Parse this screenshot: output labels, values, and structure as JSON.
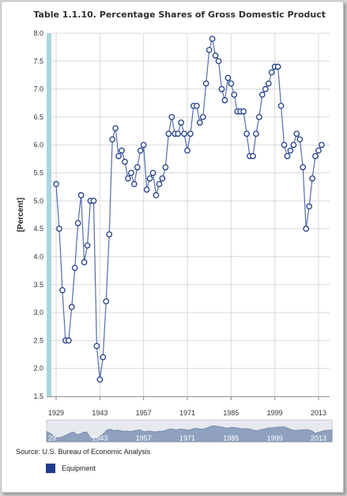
{
  "chart_data": {
    "type": "line",
    "title": "Table 1.1.10. Percentage Shares of Gross Domestic Product",
    "ylabel": "[Percent]",
    "xlabel": "",
    "ylim": [
      1.5,
      8.0
    ],
    "xlim": [
      1929,
      2015
    ],
    "yticks": [
      "8.0",
      "7.5",
      "7.0",
      "6.5",
      "6.0",
      "5.5",
      "5.0",
      "4.5",
      "4.0",
      "3.5",
      "3.0",
      "2.5",
      "2.0",
      "1.5"
    ],
    "xticks": [
      "1929",
      "1943",
      "1957",
      "1971",
      "1985",
      "1999",
      "2013"
    ],
    "navigator_xticks": [
      "29",
      "1943",
      "1957",
      "1971",
      "1985",
      "1999",
      "2013"
    ],
    "grid": true,
    "legend_position": "bottom-left",
    "series": [
      {
        "name": "Equipment",
        "color": "#1f3c8c",
        "x": [
          1929,
          1930,
          1931,
          1932,
          1933,
          1934,
          1935,
          1936,
          1937,
          1938,
          1939,
          1940,
          1941,
          1942,
          1943,
          1944,
          1945,
          1946,
          1947,
          1948,
          1949,
          1950,
          1951,
          1952,
          1953,
          1954,
          1955,
          1956,
          1957,
          1958,
          1959,
          1960,
          1961,
          1962,
          1963,
          1964,
          1965,
          1966,
          1967,
          1968,
          1969,
          1970,
          1971,
          1972,
          1973,
          1974,
          1975,
          1976,
          1977,
          1978,
          1979,
          1980,
          1981,
          1982,
          1983,
          1984,
          1985,
          1986,
          1987,
          1988,
          1989,
          1990,
          1991,
          1992,
          1993,
          1994,
          1995,
          1996,
          1997,
          1998,
          1999,
          2000,
          2001,
          2002,
          2003,
          2004,
          2005,
          2006,
          2007,
          2008,
          2009,
          2010,
          2011,
          2012,
          2013,
          2014
        ],
        "values": [
          5.3,
          4.5,
          3.4,
          2.5,
          2.5,
          3.1,
          3.8,
          4.6,
          5.1,
          3.9,
          4.2,
          5.0,
          5.0,
          2.4,
          1.8,
          2.2,
          3.2,
          4.4,
          6.1,
          6.3,
          5.8,
          5.9,
          5.7,
          5.4,
          5.5,
          5.3,
          5.6,
          5.9,
          6.0,
          5.2,
          5.4,
          5.5,
          5.1,
          5.3,
          5.4,
          5.6,
          6.2,
          6.5,
          6.2,
          6.2,
          6.4,
          6.2,
          5.9,
          6.2,
          6.7,
          6.7,
          6.4,
          6.5,
          7.1,
          7.7,
          7.9,
          7.6,
          7.5,
          7.0,
          6.8,
          7.2,
          7.1,
          6.9,
          6.6,
          6.6,
          6.6,
          6.2,
          5.8,
          5.8,
          6.2,
          6.5,
          6.9,
          7.0,
          7.1,
          7.3,
          7.4,
          7.4,
          6.7,
          6.0,
          5.8,
          5.9,
          6.0,
          6.2,
          6.1,
          5.6,
          4.5,
          4.9,
          5.4,
          5.8,
          5.9,
          6.0
        ]
      }
    ]
  },
  "source": "Source: U.S. Bureau of Economic Analysis"
}
